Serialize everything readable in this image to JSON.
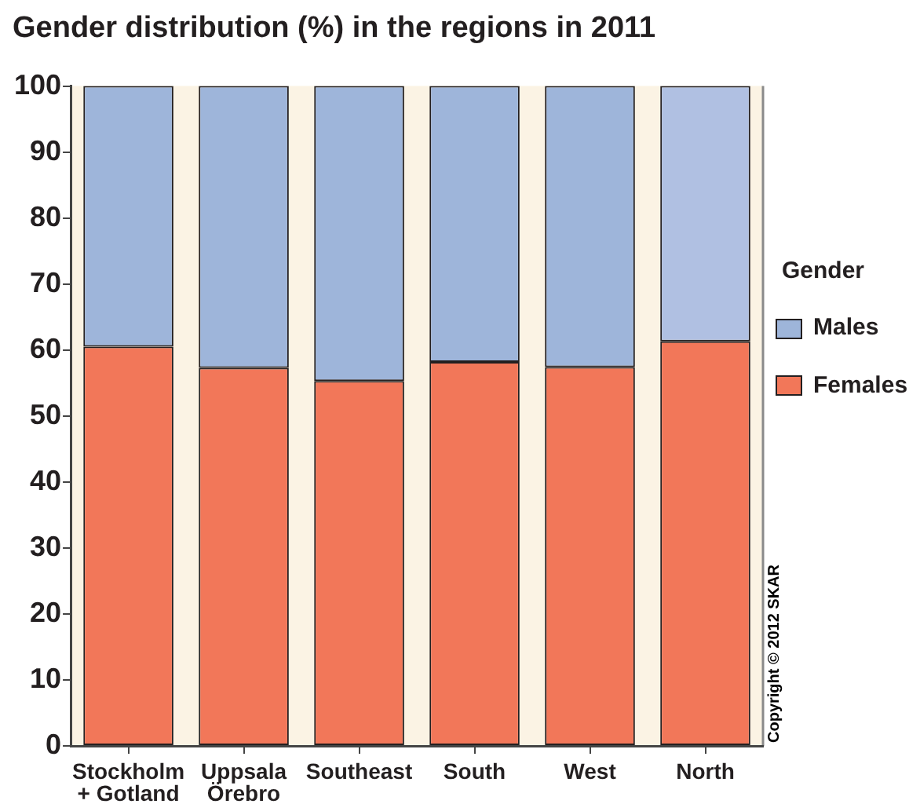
{
  "chart_data": {
    "type": "bar",
    "title": "Gender distribution (%) in the regions in 2011",
    "categories": [
      "Stockholm + Gotland",
      "Uppsala Örebro",
      "Southeast",
      "South",
      "West",
      "North"
    ],
    "series": [
      {
        "name": "Females",
        "color": "#f27759",
        "values": [
          60.5,
          57.3,
          55.3,
          58.2,
          57.4,
          61.3
        ]
      },
      {
        "name": "Males",
        "color": "#9eb5da",
        "colors": [
          "#9eb5da",
          "#9eb5da",
          "#9eb5da",
          "#9eb5da",
          "#9eb5da",
          "#b0c0e2"
        ],
        "values": [
          39.5,
          42.7,
          44.7,
          41.8,
          42.6,
          38.7
        ]
      }
    ],
    "stacked": true,
    "ylim": [
      0,
      100
    ],
    "yticks": [
      0,
      10,
      20,
      30,
      40,
      50,
      60,
      70,
      80,
      90,
      100
    ],
    "legend": "right",
    "legend_title": "Gender",
    "annotations": [
      "Copyright © 2012 SKAR"
    ]
  }
}
